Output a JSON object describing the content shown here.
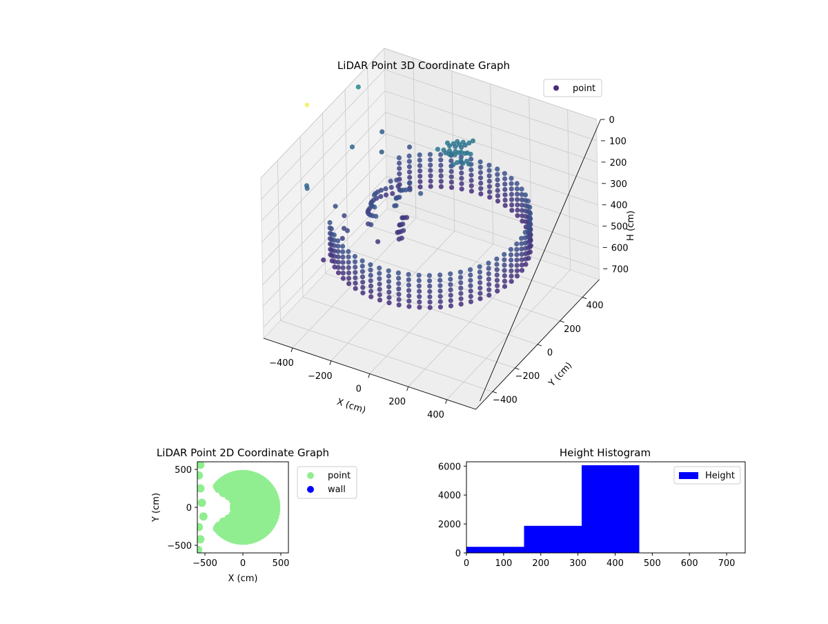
{
  "chart_data": [
    {
      "type": "scatter",
      "projection": "3d",
      "title": "LiDAR Point 3D Coordinate Graph",
      "xlabel": "X (cm)",
      "ylabel": "Y (cm)",
      "zlabel": "H (cm)",
      "xlim": [
        -550,
        550
      ],
      "ylim": [
        -550,
        550
      ],
      "zlim": [
        0,
        750
      ],
      "z_inverted": true,
      "xticks": [
        -400,
        -200,
        0,
        200,
        400
      ],
      "yticks": [
        -400,
        -200,
        0,
        200,
        400
      ],
      "zticks": [
        0,
        100,
        200,
        300,
        400,
        500,
        600,
        700
      ],
      "legend": [
        "point"
      ],
      "legend_position": "top-right",
      "grid": true,
      "colormap": "viridis",
      "series": [
        {
          "name": "point",
          "shape": "cylindrical wall",
          "radius": 450,
          "height_range": [
            310,
            460
          ],
          "opening_angle_range_deg": [
            140,
            215
          ],
          "outliers": [
            {
              "x": -540,
              "y": 300,
              "h": 40
            },
            {
              "x": -520,
              "y": -200,
              "h": 220
            },
            {
              "x": -500,
              "y": -230,
              "h": 210
            },
            {
              "x": -470,
              "y": 120,
              "h": 200
            },
            {
              "x": -450,
              "y": 350,
              "h": 250
            },
            {
              "x": -420,
              "y": -120,
              "h": 330
            },
            {
              "x": -400,
              "y": 260,
              "h": 280
            },
            {
              "x": -380,
              "y": -300,
              "h": 470
            },
            {
              "x": -350,
              "y": 420,
              "h": 330
            }
          ]
        }
      ]
    },
    {
      "type": "scatter",
      "title": "LiDAR Point 2D Coordinate Graph",
      "xlabel": "X (cm)",
      "ylabel": "Y (cm)",
      "xlim": [
        -600,
        600
      ],
      "ylim": [
        -600,
        600
      ],
      "xticks": [
        -500,
        0,
        500
      ],
      "yticks": [
        -500,
        0,
        500
      ],
      "legend": [
        "point",
        "wall"
      ],
      "legend_position": "outside-right",
      "colors": {
        "point": "#90ee90",
        "wall": "#0000ff"
      },
      "series": [
        {
          "name": "point",
          "shape": "disc",
          "radius": 460,
          "opening_angle_range_deg": [
            145,
            215
          ]
        },
        {
          "name": "wall",
          "values": []
        }
      ]
    },
    {
      "type": "bar",
      "title": "Height Histogram",
      "xlabel": "",
      "ylabel": "",
      "xlim": [
        0,
        750
      ],
      "ylim": [
        0,
        6300
      ],
      "xticks": [
        0,
        100,
        200,
        300,
        400,
        500,
        600,
        700
      ],
      "yticks": [
        0,
        2000,
        4000,
        6000
      ],
      "legend": [
        "Height"
      ],
      "legend_position": "top-right",
      "color": "#0000ff",
      "bins": [
        {
          "start": 0,
          "end": 155,
          "count": 420
        },
        {
          "start": 155,
          "end": 310,
          "count": 1870
        },
        {
          "start": 310,
          "end": 465,
          "count": 6060
        },
        {
          "start": 465,
          "end": 620,
          "count": 0
        },
        {
          "start": 620,
          "end": 775,
          "count": 0
        }
      ]
    }
  ]
}
